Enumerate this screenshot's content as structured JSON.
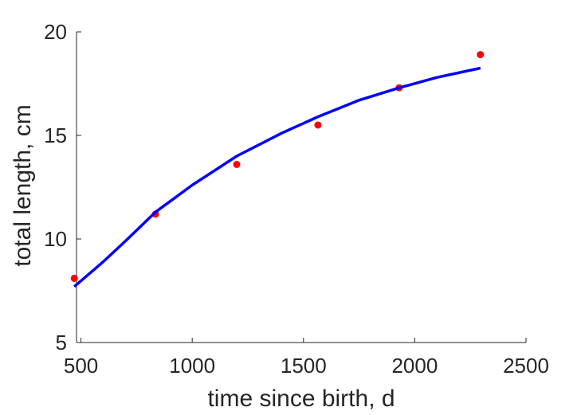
{
  "chart_data": {
    "type": "scatter",
    "title": "",
    "xlabel": "time since birth, d",
    "ylabel": "total length, cm",
    "xlim": [
      480,
      2500
    ],
    "ylim": [
      5,
      20
    ],
    "xticks": [
      500,
      1000,
      1500,
      2000,
      2500
    ],
    "yticks": [
      5,
      10,
      15,
      20
    ],
    "xtick_labels": [
      "500",
      "1000",
      "1500",
      "2000",
      "2500"
    ],
    "ytick_labels": [
      "5",
      "10",
      "15",
      "20"
    ],
    "grid": false,
    "series": [
      {
        "kind": "points",
        "color": "#ff0000",
        "x": [
          470,
          835,
          1200,
          1565,
          1930,
          2295
        ],
        "y": [
          8.1,
          11.2,
          13.6,
          15.5,
          17.3,
          18.9
        ]
      },
      {
        "kind": "line",
        "color": "#0000ff",
        "x": [
          470,
          600,
          700,
          835,
          1000,
          1200,
          1400,
          1565,
          1750,
          1930,
          2100,
          2295
        ],
        "y": [
          7.7,
          8.9,
          9.9,
          11.3,
          12.6,
          14.0,
          15.1,
          15.9,
          16.7,
          17.3,
          17.8,
          18.25
        ]
      }
    ]
  }
}
